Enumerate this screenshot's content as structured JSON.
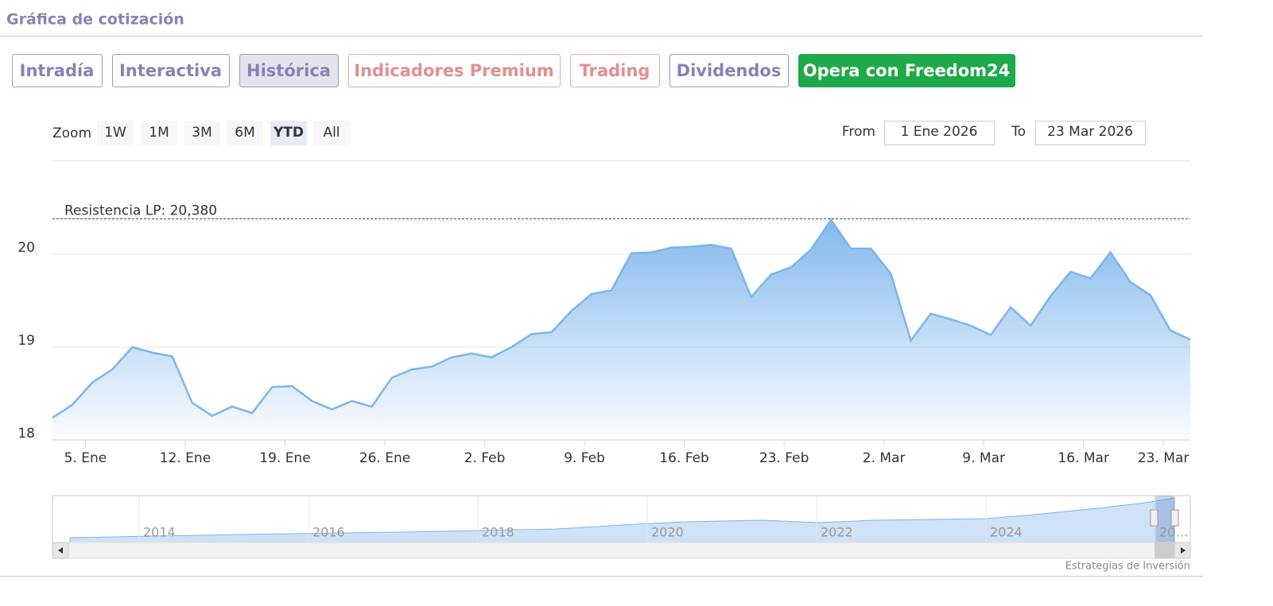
{
  "header": {
    "title": "Gráfica de cotización"
  },
  "tabs": [
    "Intradía",
    "Interactiva",
    "Histórica",
    "Indicadores Premium",
    "Trading",
    "Dividendos",
    "Opera con Freedom24"
  ],
  "zoom": {
    "label": "Zoom",
    "buttons": [
      "1W",
      "1M",
      "3M",
      "6M",
      "YTD",
      "All"
    ]
  },
  "range": {
    "from_label": "From",
    "from": "1 Ene 2026",
    "to_label": "To",
    "to": "23 Mar 2026"
  },
  "chart_data": {
    "type": "area",
    "color": "#7cb5ec",
    "categories": [
      null,
      null,
      "5. Ene",
      null,
      null,
      null,
      null,
      "12. Ene",
      null,
      null,
      null,
      null,
      "19. Ene",
      null,
      null,
      null,
      null,
      "26. Ene",
      null,
      null,
      null,
      null,
      "2. Feb",
      null,
      null,
      null,
      null,
      "9. Feb",
      null,
      null,
      null,
      null,
      "16. Feb",
      null,
      null,
      null,
      null,
      "23. Feb",
      null,
      null,
      null,
      null,
      "2. Mar",
      null,
      null,
      null,
      null,
      "9. Mar",
      null,
      null,
      null,
      null,
      "16. Mar",
      null,
      null,
      null,
      "23. Mar",
      null
    ],
    "values": [
      18.24,
      18.38,
      18.62,
      18.76,
      19.0,
      18.94,
      18.9,
      18.4,
      18.26,
      18.36,
      18.29,
      18.57,
      18.58,
      18.42,
      18.33,
      18.42,
      18.36,
      18.67,
      18.76,
      18.79,
      18.89,
      18.93,
      18.89,
      19.0,
      19.14,
      19.16,
      19.39,
      19.57,
      19.61,
      20.01,
      20.02,
      20.07,
      20.08,
      20.1,
      20.06,
      19.54,
      19.78,
      19.86,
      20.05,
      20.37,
      20.06,
      20.06,
      19.79,
      19.07,
      19.36,
      19.3,
      19.23,
      19.13,
      19.43,
      19.23,
      19.55,
      19.81,
      19.74,
      20.02,
      19.7,
      19.56,
      19.18,
      19.08
    ],
    "ylim": [
      18,
      21
    ],
    "yticks": [
      18,
      19,
      20
    ],
    "grid": true,
    "annotation": {
      "label": "Resistencia LP: 20,380",
      "value": 20.38,
      "color": "#1b5e20"
    }
  },
  "navigator": {
    "labels": [
      "2014",
      "2016",
      "2018",
      "2020",
      "2022",
      "2024",
      "20…"
    ]
  },
  "credit": "Estrategias de Inversión"
}
